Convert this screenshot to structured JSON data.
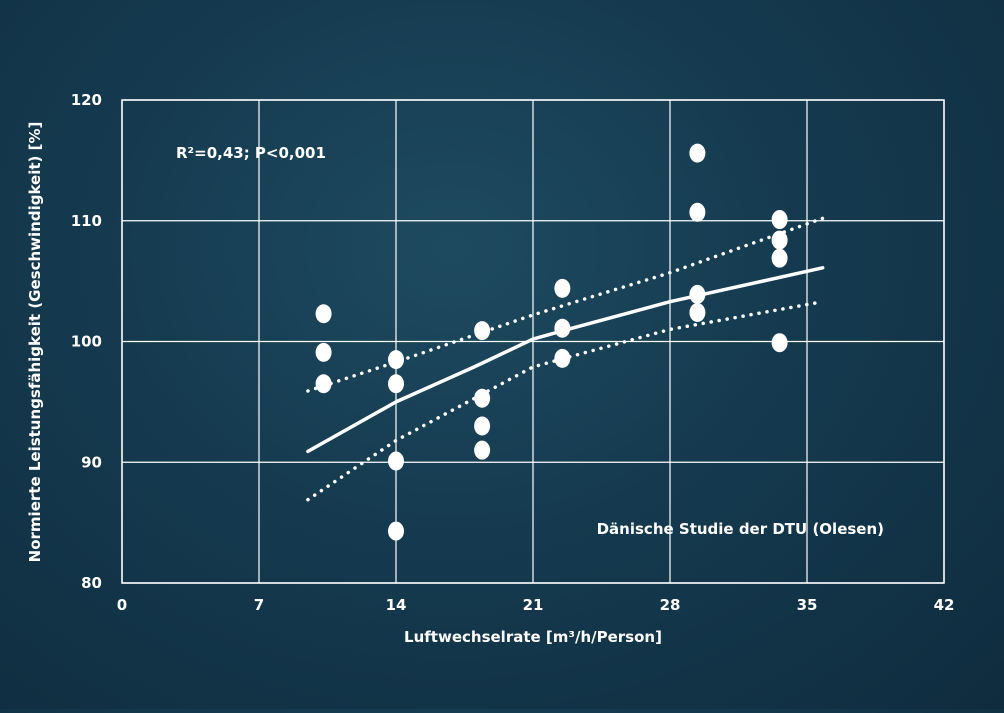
{
  "chart_data": {
    "type": "scatter",
    "xlabel": "Luftwechselrate [m³/h/Person]",
    "ylabel": "Normierte Leistungsfähigkeit (Geschwindigkeit)  [%]",
    "xlim": [
      0,
      42
    ],
    "ylim": [
      80,
      120
    ],
    "x_ticks": [
      0,
      7,
      14,
      21,
      28,
      35,
      42
    ],
    "y_ticks": [
      80,
      90,
      100,
      110,
      120
    ],
    "grid": true,
    "annotations": {
      "stats": "R²=0,43;  P<0,001",
      "source": "Dänische Studie der DTU (Olesen)"
    },
    "points": [
      {
        "x": 10.3,
        "y": 102.3
      },
      {
        "x": 10.3,
        "y": 99.1
      },
      {
        "x": 10.3,
        "y": 96.5
      },
      {
        "x": 14.0,
        "y": 98.5
      },
      {
        "x": 14.0,
        "y": 96.5
      },
      {
        "x": 14.0,
        "y": 90.1
      },
      {
        "x": 14.0,
        "y": 84.3
      },
      {
        "x": 18.4,
        "y": 100.9
      },
      {
        "x": 18.4,
        "y": 95.3
      },
      {
        "x": 18.4,
        "y": 93.0
      },
      {
        "x": 18.4,
        "y": 91.0
      },
      {
        "x": 22.5,
        "y": 104.4
      },
      {
        "x": 22.5,
        "y": 101.1
      },
      {
        "x": 22.5,
        "y": 98.6
      },
      {
        "x": 29.4,
        "y": 115.6
      },
      {
        "x": 29.4,
        "y": 110.7
      },
      {
        "x": 29.4,
        "y": 103.9
      },
      {
        "x": 29.4,
        "y": 102.4
      },
      {
        "x": 33.6,
        "y": 110.1
      },
      {
        "x": 33.6,
        "y": 108.4
      },
      {
        "x": 33.6,
        "y": 106.9
      },
      {
        "x": 33.6,
        "y": 99.9
      }
    ],
    "fit_line": [
      {
        "x": 9.5,
        "y": 90.9
      },
      {
        "x": 14.0,
        "y": 95.0
      },
      {
        "x": 18.0,
        "y": 97.9
      },
      {
        "x": 21.0,
        "y": 100.2
      },
      {
        "x": 23.0,
        "y": 101.1
      },
      {
        "x": 28.0,
        "y": 103.3
      },
      {
        "x": 35.8,
        "y": 106.1
      }
    ],
    "upper_band": [
      {
        "x": 9.5,
        "y": 95.9
      },
      {
        "x": 14.0,
        "y": 98.3
      },
      {
        "x": 21.0,
        "y": 102.2
      },
      {
        "x": 28.0,
        "y": 105.7
      },
      {
        "x": 35.8,
        "y": 110.2
      }
    ],
    "lower_band": [
      {
        "x": 9.5,
        "y": 86.9
      },
      {
        "x": 14.0,
        "y": 91.8
      },
      {
        "x": 21.0,
        "y": 97.9
      },
      {
        "x": 28.0,
        "y": 101.0
      },
      {
        "x": 35.8,
        "y": 103.3
      }
    ]
  }
}
